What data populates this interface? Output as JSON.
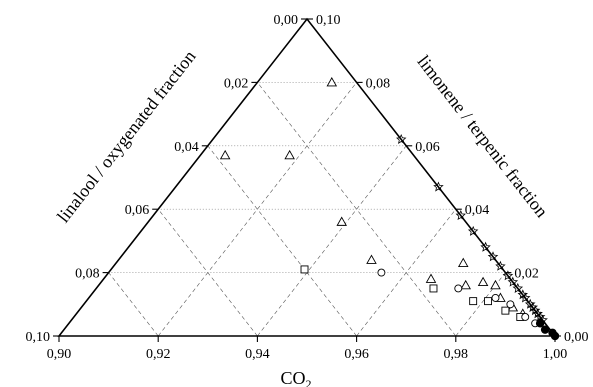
{
  "chart_data": {
    "type": "scatter",
    "subtype": "ternary",
    "title": "",
    "axes": {
      "bottom": {
        "label": "CO",
        "label_subscript": "2",
        "range": [
          0.9,
          1.0
        ],
        "ticks": [
          "0,90",
          "0,92",
          "0,94",
          "0,96",
          "0,98",
          "1,00"
        ]
      },
      "left": {
        "label": "linalool / oxygenated fraction",
        "range": [
          0.0,
          0.1
        ],
        "ticks": [
          "0,00",
          "0,02",
          "0,04",
          "0,06",
          "0,08",
          "0,10"
        ]
      },
      "right": {
        "label": "limonene / terpenic fraction",
        "range": [
          0.0,
          0.1
        ],
        "ticks": [
          "0,10",
          "0,08",
          "0,06",
          "0,04",
          "0,02",
          "0,00"
        ]
      }
    },
    "grid": true,
    "series": [
      {
        "marker": "triangle",
        "points": [
          [
            0.005,
            0.08
          ],
          [
            0.025,
            0.057
          ],
          [
            0.038,
            0.057
          ],
          [
            0.025,
            0.036
          ],
          [
            0.025,
            0.024
          ],
          [
            0.007,
            0.023
          ],
          [
            0.016,
            0.018
          ],
          [
            0.01,
            0.016
          ],
          [
            0.006,
            0.017
          ],
          [
            0.004,
            0.016
          ],
          [
            0.005,
            0.012
          ],
          [
            0.004,
            0.009
          ],
          [
            0.003,
            0.007
          ]
        ]
      },
      {
        "marker": "square",
        "points": [
          [
            0.04,
            0.021
          ],
          [
            0.017,
            0.015
          ],
          [
            0.011,
            0.011
          ],
          [
            0.008,
            0.011
          ],
          [
            0.006,
            0.008
          ],
          [
            0.004,
            0.006
          ]
        ]
      },
      {
        "marker": "circle",
        "points": [
          [
            0.025,
            0.02
          ],
          [
            0.012,
            0.015
          ],
          [
            0.006,
            0.012
          ],
          [
            0.004,
            0.01
          ],
          [
            0.003,
            0.006
          ],
          [
            0.002,
            0.004
          ]
        ]
      },
      {
        "marker": "star",
        "points": [
          [
            0.0,
            0.062
          ],
          [
            0.0,
            0.047
          ],
          [
            0.0,
            0.038
          ],
          [
            0.0,
            0.033
          ],
          [
            0.0,
            0.028
          ],
          [
            0.0,
            0.025
          ],
          [
            0.0,
            0.022
          ],
          [
            0.0,
            0.019
          ],
          [
            0.0,
            0.017
          ],
          [
            0.0,
            0.015
          ],
          [
            0.0,
            0.013
          ],
          [
            0.0,
            0.012
          ],
          [
            0.0,
            0.01
          ],
          [
            0.0,
            0.009
          ],
          [
            0.0,
            0.008
          ],
          [
            0.0,
            0.007
          ],
          [
            0.0,
            0.006
          ],
          [
            0.0,
            0.005
          ]
        ]
      },
      {
        "marker": "filled-circle",
        "points": [
          [
            0.001,
            0.004
          ],
          [
            0.001,
            0.002
          ],
          [
            0.0,
            0.001
          ],
          [
            0.0,
            0.0
          ]
        ]
      }
    ]
  }
}
